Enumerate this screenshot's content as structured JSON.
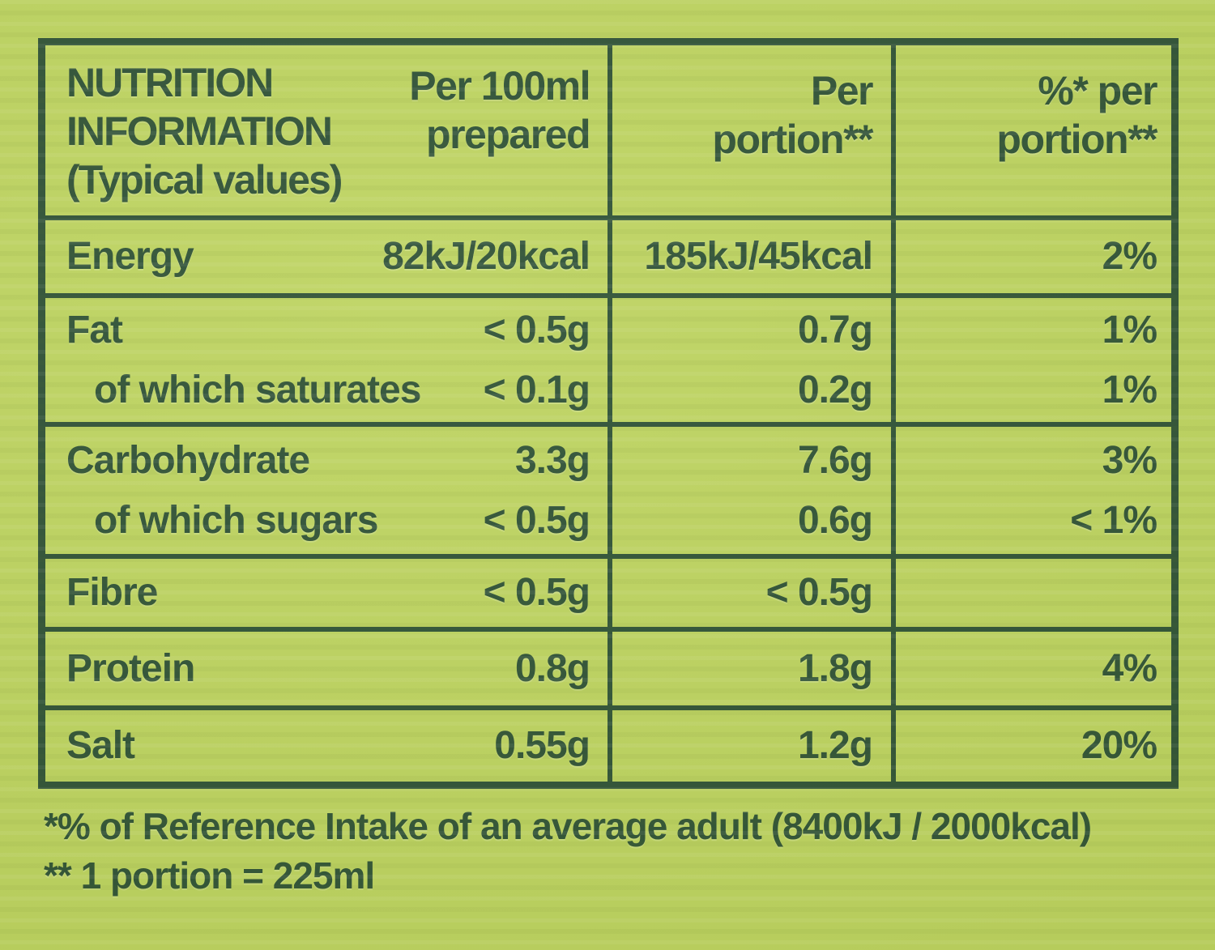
{
  "colors": {
    "ink": "#2b4e34",
    "background": "#bdd35f"
  },
  "table": {
    "title": "NUTRITION\nINFORMATION\n(Typical values)",
    "columns": {
      "per100": "Per 100ml\nprepared",
      "portion": "Per\nportion**",
      "percent": "%* per\nportion**"
    },
    "groups": [
      {
        "lines": [
          {
            "label": "Energy",
            "per100": "82kJ/20kcal",
            "portion": "185kJ/45kcal",
            "percent": "2%"
          }
        ]
      },
      {
        "lines": [
          {
            "label": "Fat",
            "per100": "< 0.5g",
            "portion": "0.7g",
            "percent": "1%"
          },
          {
            "label": "of which saturates",
            "per100": "< 0.1g",
            "portion": "0.2g",
            "percent": "1%"
          }
        ]
      },
      {
        "lines": [
          {
            "label": "Carbohydrate",
            "per100": "3.3g",
            "portion": "7.6g",
            "percent": "3%"
          },
          {
            "label": "of which sugars",
            "per100": "< 0.5g",
            "portion": "0.6g",
            "percent": "< 1%"
          }
        ]
      },
      {
        "lines": [
          {
            "label": "Fibre",
            "per100": "< 0.5g",
            "portion": "< 0.5g",
            "percent": ""
          }
        ]
      },
      {
        "lines": [
          {
            "label": "Protein",
            "per100": "0.8g",
            "portion": "1.8g",
            "percent": "4%"
          }
        ]
      },
      {
        "lines": [
          {
            "label": "Salt",
            "per100": "0.55g",
            "portion": "1.2g",
            "percent": "20%"
          }
        ]
      }
    ]
  },
  "footnotes": {
    "reference_intake": "*% of Reference Intake of an average adult (8400kJ / 2000kcal)",
    "portion_definition": "** 1 portion = 225ml"
  }
}
